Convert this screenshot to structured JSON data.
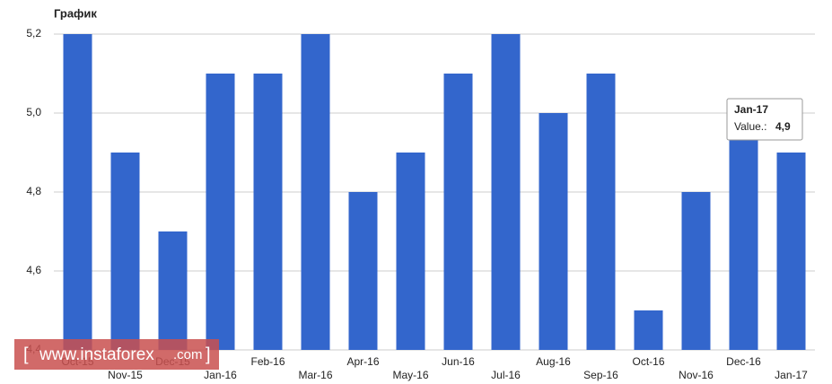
{
  "chart_data": {
    "type": "bar",
    "title": "График",
    "categories": [
      "Oct-15",
      "Nov-15",
      "Dec-15",
      "Jan-16",
      "Feb-16",
      "Mar-16",
      "Apr-16",
      "May-16",
      "Jun-16",
      "Jul-16",
      "Aug-16",
      "Sep-16",
      "Oct-16",
      "Nov-16",
      "Dec-16",
      "Jan-17"
    ],
    "values": [
      5.2,
      4.9,
      4.7,
      5.1,
      5.1,
      5.2,
      4.8,
      4.9,
      5.1,
      5.2,
      5.0,
      5.1,
      4.5,
      4.8,
      5.0,
      4.9
    ],
    "color": "#3366cc",
    "ylim": [
      4.4,
      5.2
    ],
    "yticks": [
      {
        "value": 4.4,
        "label": "4,4"
      },
      {
        "value": 4.6,
        "label": "4,6"
      },
      {
        "value": 4.8,
        "label": "4,8"
      },
      {
        "value": 5.0,
        "label": "5,0"
      },
      {
        "value": 5.2,
        "label": "5,2"
      }
    ],
    "grid": true,
    "tooltip": {
      "title": "Jan-17",
      "label": "Value.:",
      "value": "4,9"
    }
  },
  "watermark": {
    "site": "www.instaforex",
    "tld": ".com"
  }
}
